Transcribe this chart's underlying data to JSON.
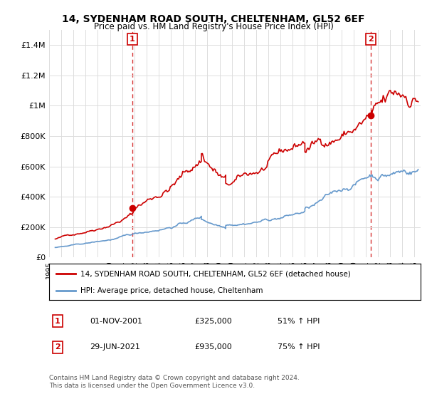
{
  "title": "14, SYDENHAM ROAD SOUTH, CHELTENHAM, GL52 6EF",
  "subtitle": "Price paid vs. HM Land Registry's House Price Index (HPI)",
  "sale1_price": 325000,
  "sale1_label": "01-NOV-2001",
  "sale1_pct": "51% ↑ HPI",
  "sale2_price": 935000,
  "sale2_label": "29-JUN-2021",
  "sale2_pct": "75% ↑ HPI",
  "legend_line1": "14, SYDENHAM ROAD SOUTH, CHELTENHAM, GL52 6EF (detached house)",
  "legend_line2": "HPI: Average price, detached house, Cheltenham",
  "footnote": "Contains HM Land Registry data © Crown copyright and database right 2024.\nThis data is licensed under the Open Government Licence v3.0.",
  "red_color": "#cc0000",
  "blue_color": "#6699cc",
  "vline_color": "#cc0000",
  "background_color": "#ffffff",
  "ylim": [
    0,
    1500000
  ],
  "yticks": [
    0,
    200000,
    400000,
    600000,
    800000,
    1000000,
    1200000,
    1400000
  ],
  "ytick_labels": [
    "£0",
    "£200K",
    "£400K",
    "£600K",
    "£800K",
    "£1M",
    "£1.2M",
    "£1.4M"
  ],
  "xstart": 1995.5,
  "xend": 2025.5
}
